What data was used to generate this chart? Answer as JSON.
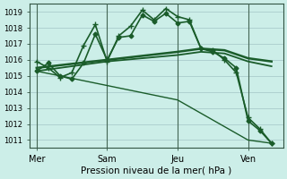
{
  "background_color": "#cceee8",
  "grid_color": "#aacccc",
  "line_color": "#1a5c2a",
  "xlabel": "Pression niveau de la mer( hPa )",
  "ylim": [
    1010.5,
    1019.5
  ],
  "yticks": [
    1011,
    1012,
    1013,
    1014,
    1015,
    1016,
    1017,
    1018,
    1019
  ],
  "xtick_labels": [
    "Mer",
    "Sam",
    "Jeu",
    "Ven"
  ],
  "xtick_positions": [
    0,
    3,
    6,
    9
  ],
  "vline_positions": [
    0,
    3,
    6,
    9
  ],
  "lines": [
    {
      "x": [
        0,
        0.5,
        1,
        1.5,
        2,
        2.5,
        3,
        3.5,
        4,
        4.5,
        5,
        5.5,
        6,
        6.5,
        7,
        7.5,
        8,
        8.5,
        9,
        9.5,
        10
      ],
      "y": [
        1015.9,
        1015.5,
        1014.9,
        1015.2,
        1016.9,
        1018.2,
        1015.9,
        1017.5,
        1018.1,
        1019.1,
        1018.5,
        1019.2,
        1018.7,
        1018.5,
        1016.7,
        1016.6,
        1016.0,
        1015.2,
        1012.4,
        1011.7,
        1010.8
      ],
      "marker": "+",
      "linewidth": 1.2,
      "markersize": 4.5
    },
    {
      "x": [
        0,
        0.5,
        1,
        1.5,
        2,
        2.5,
        3,
        3.5,
        4,
        4.5,
        5,
        5.5,
        6,
        6.5,
        7,
        7.5,
        8,
        8.5,
        9,
        9.5,
        10
      ],
      "y": [
        1015.3,
        1015.8,
        1015.0,
        1014.8,
        1015.8,
        1017.6,
        1016.0,
        1017.4,
        1017.5,
        1018.8,
        1018.4,
        1018.9,
        1018.3,
        1018.4,
        1016.7,
        1016.5,
        1016.1,
        1015.5,
        1012.2,
        1011.6,
        1010.8
      ],
      "marker": "D",
      "linewidth": 1.2,
      "markersize": 2.5
    },
    {
      "x": [
        0,
        3,
        6,
        7,
        8,
        9,
        10
      ],
      "y": [
        1015.5,
        1016.0,
        1016.5,
        1016.7,
        1016.6,
        1016.1,
        1015.9
      ],
      "marker": "none",
      "linewidth": 1.8,
      "markersize": 0
    },
    {
      "x": [
        0,
        3,
        6,
        7,
        8,
        9,
        10
      ],
      "y": [
        1015.3,
        1015.9,
        1016.3,
        1016.5,
        1016.4,
        1015.9,
        1015.6
      ],
      "marker": "none",
      "linewidth": 1.3,
      "markersize": 0
    },
    {
      "x": [
        0,
        6,
        9,
        10
      ],
      "y": [
        1015.3,
        1013.5,
        1011.0,
        1010.8
      ],
      "marker": "none",
      "linewidth": 1.0,
      "markersize": 0
    }
  ]
}
